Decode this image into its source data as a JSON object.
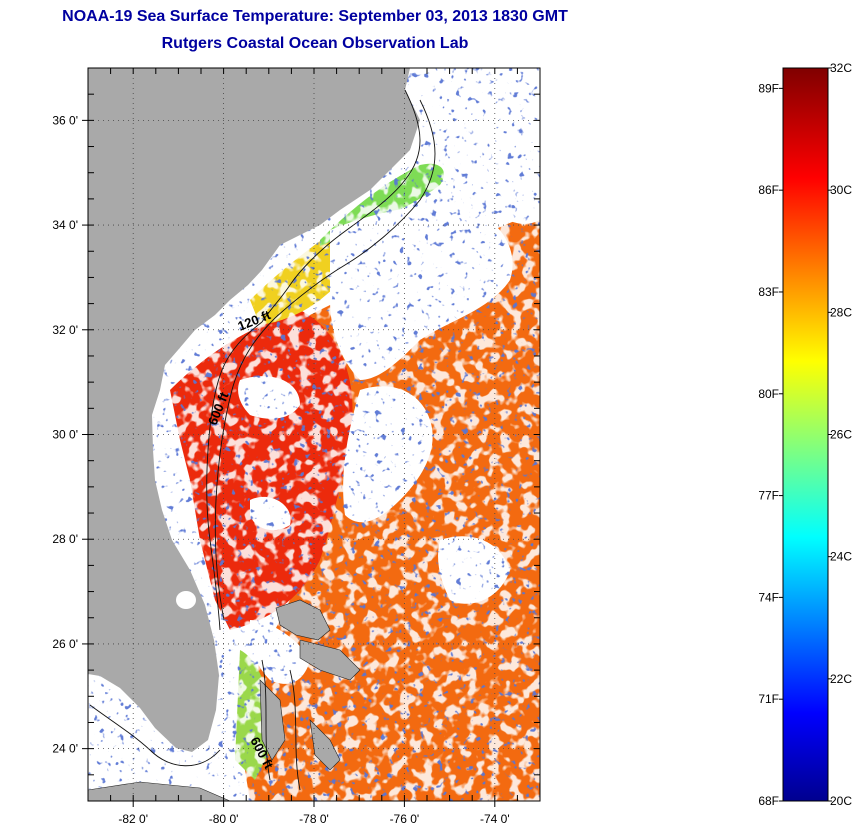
{
  "title": {
    "line1": "NOAA-19 Sea Surface Temperature:  September 03, 2013 1830 GMT",
    "line2": "Rutgers Coastal Ocean Observation Lab"
  },
  "map": {
    "lon_range": [
      -83,
      -73
    ],
    "lat_range": [
      23,
      37
    ],
    "lon_ticks": [
      {
        "value": -82,
        "label": "-82 0'"
      },
      {
        "value": -80,
        "label": "-80 0'"
      },
      {
        "value": -78,
        "label": "-78 0'"
      },
      {
        "value": -76,
        "label": "-76 0'"
      },
      {
        "value": -74,
        "label": "-74 0'"
      }
    ],
    "lat_ticks": [
      {
        "value": 36,
        "label": "36 0'"
      },
      {
        "value": 34,
        "label": "34 0'"
      },
      {
        "value": 32,
        "label": "32 0'"
      },
      {
        "value": 30,
        "label": "30 0'"
      },
      {
        "value": 28,
        "label": "28 0'"
      },
      {
        "value": 26,
        "label": "26 0'"
      },
      {
        "value": 24,
        "label": "24 0'"
      }
    ],
    "contour_labels": [
      {
        "text": "120 ft"
      },
      {
        "text": "600 ft"
      },
      {
        "text": "600 ft"
      }
    ],
    "colors": {
      "land": "#a9a9a9",
      "cloud": "#ffffff",
      "warm_red": "#ec2a0c",
      "orange": "#f36a10",
      "yellow": "#f0e22a",
      "green": "#7edc55",
      "blue": "#1a2fa8"
    }
  },
  "colorbar": {
    "celsius_range": [
      20,
      32
    ],
    "fahrenheit_labels": [
      {
        "value": 89,
        "label": "89F"
      },
      {
        "value": 86,
        "label": "86F"
      },
      {
        "value": 83,
        "label": "83F"
      },
      {
        "value": 80,
        "label": "80F"
      },
      {
        "value": 77,
        "label": "77F"
      },
      {
        "value": 74,
        "label": "74F"
      },
      {
        "value": 71,
        "label": "71F"
      },
      {
        "value": 68,
        "label": "68F"
      }
    ],
    "celsius_labels": [
      {
        "value": 32,
        "label": "32C"
      },
      {
        "value": 30,
        "label": "30C"
      },
      {
        "value": 28,
        "label": "28C"
      },
      {
        "value": 26,
        "label": "26C"
      },
      {
        "value": 24,
        "label": "24C"
      },
      {
        "value": 22,
        "label": "22C"
      },
      {
        "value": 20,
        "label": "20C"
      }
    ]
  }
}
